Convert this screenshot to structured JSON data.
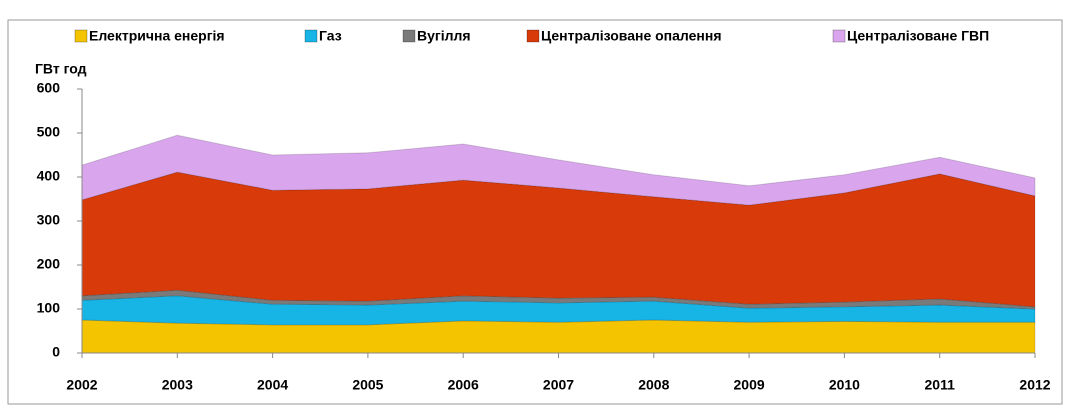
{
  "chart_data": {
    "type": "stacked_area",
    "y_label": "ГВт год",
    "categories": [
      "2002",
      "2003",
      "2004",
      "2005",
      "2006",
      "2007",
      "2008",
      "2009",
      "2010",
      "2011",
      "2012"
    ],
    "series": [
      {
        "name": "Електрична енергія",
        "color": "#f5c400",
        "values": [
          75,
          68,
          64,
          64,
          73,
          70,
          75,
          70,
          72,
          70,
          70
        ]
      },
      {
        "name": "Газ",
        "color": "#17b4e6",
        "values": [
          45,
          62,
          47,
          45,
          45,
          44,
          43,
          32,
          33,
          39,
          30
        ]
      },
      {
        "name": "Вугілля",
        "color": "#7a7a7a",
        "values": [
          10,
          13,
          9,
          9,
          12,
          11,
          9,
          9,
          11,
          14,
          5
        ]
      },
      {
        "name": "Централізоване опалення",
        "color": "#d93a0a",
        "values": [
          218,
          268,
          250,
          255,
          263,
          250,
          228,
          225,
          248,
          284,
          252
        ]
      },
      {
        "name": "Централізоване ГВП",
        "color": "#d9a6ee",
        "values": [
          79,
          84,
          80,
          82,
          82,
          64,
          50,
          44,
          41,
          38,
          41
        ]
      }
    ],
    "ylim": [
      0,
      600
    ],
    "yticks": [
      0,
      100,
      200,
      300,
      400,
      500,
      600
    ],
    "legend": "top"
  }
}
